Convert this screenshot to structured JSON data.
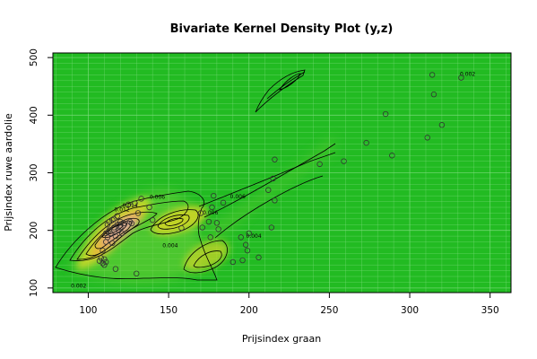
{
  "chart_data": {
    "type": "scatter",
    "title": "Bivariate Kernel Density Plot (y,z)",
    "xlabel": "Prijsindex graan",
    "ylabel": "Prijsindex ruwe aardolie",
    "xlim": [
      78,
      363
    ],
    "ylim": [
      92,
      508
    ],
    "x_ticks": [
      100,
      150,
      200,
      250,
      300,
      350
    ],
    "y_ticks": [
      100,
      200,
      300,
      400,
      500
    ],
    "grid": true,
    "colors": {
      "background": "#22bb22",
      "grid": "#7fdc7f",
      "points": "#333333",
      "contour": "#000000",
      "density_low": "#22bb22",
      "density_mid": "#e6cf1f",
      "density_high": "#d9a88f"
    },
    "contour_labels": [
      {
        "text": "0.002",
        "x": 94,
        "y": 104
      },
      {
        "text": "0.004",
        "x": 151,
        "y": 174
      },
      {
        "text": "0.004",
        "x": 203,
        "y": 190
      },
      {
        "text": "0.006",
        "x": 176,
        "y": 231
      },
      {
        "text": "0.006",
        "x": 193,
        "y": 259
      },
      {
        "text": "0.006",
        "x": 143,
        "y": 258
      },
      {
        "text": "0.014",
        "x": 126,
        "y": 243
      },
      {
        "text": "0.012",
        "x": 121,
        "y": 236
      },
      {
        "text": "0.002",
        "x": 336,
        "y": 471
      }
    ],
    "points": [
      {
        "x": 107,
        "y": 147
      },
      {
        "x": 108,
        "y": 152
      },
      {
        "x": 109,
        "y": 165
      },
      {
        "x": 109,
        "y": 143
      },
      {
        "x": 110,
        "y": 140
      },
      {
        "x": 110,
        "y": 150
      },
      {
        "x": 111,
        "y": 145
      },
      {
        "x": 111,
        "y": 180
      },
      {
        "x": 111,
        "y": 195
      },
      {
        "x": 112,
        "y": 188
      },
      {
        "x": 112,
        "y": 210
      },
      {
        "x": 113,
        "y": 200
      },
      {
        "x": 113,
        "y": 215
      },
      {
        "x": 114,
        "y": 195
      },
      {
        "x": 115,
        "y": 218
      },
      {
        "x": 115,
        "y": 178
      },
      {
        "x": 116,
        "y": 205
      },
      {
        "x": 116,
        "y": 220
      },
      {
        "x": 117,
        "y": 190
      },
      {
        "x": 117,
        "y": 133
      },
      {
        "x": 118,
        "y": 210
      },
      {
        "x": 118,
        "y": 225
      },
      {
        "x": 119,
        "y": 200
      },
      {
        "x": 120,
        "y": 215
      },
      {
        "x": 120,
        "y": 205
      },
      {
        "x": 121,
        "y": 195
      },
      {
        "x": 122,
        "y": 212
      },
      {
        "x": 125,
        "y": 245
      },
      {
        "x": 126,
        "y": 215
      },
      {
        "x": 127,
        "y": 212
      },
      {
        "x": 129,
        "y": 247
      },
      {
        "x": 130,
        "y": 125
      },
      {
        "x": 131,
        "y": 230
      },
      {
        "x": 133,
        "y": 255
      },
      {
        "x": 138,
        "y": 240
      },
      {
        "x": 140,
        "y": 218
      },
      {
        "x": 158,
        "y": 204
      },
      {
        "x": 170,
        "y": 230
      },
      {
        "x": 171,
        "y": 205
      },
      {
        "x": 175,
        "y": 215
      },
      {
        "x": 176,
        "y": 188
      },
      {
        "x": 177,
        "y": 240
      },
      {
        "x": 178,
        "y": 260
      },
      {
        "x": 180,
        "y": 213
      },
      {
        "x": 181,
        "y": 202
      },
      {
        "x": 184,
        "y": 248
      },
      {
        "x": 190,
        "y": 145
      },
      {
        "x": 195,
        "y": 188
      },
      {
        "x": 196,
        "y": 148
      },
      {
        "x": 198,
        "y": 175
      },
      {
        "x": 199,
        "y": 165
      },
      {
        "x": 200,
        "y": 195
      },
      {
        "x": 206,
        "y": 153
      },
      {
        "x": 212,
        "y": 270
      },
      {
        "x": 214,
        "y": 205
      },
      {
        "x": 215,
        "y": 290
      },
      {
        "x": 216,
        "y": 323
      },
      {
        "x": 216,
        "y": 252
      },
      {
        "x": 244,
        "y": 315
      },
      {
        "x": 259,
        "y": 320
      },
      {
        "x": 273,
        "y": 352
      },
      {
        "x": 285,
        "y": 402
      },
      {
        "x": 289,
        "y": 330
      },
      {
        "x": 311,
        "y": 361
      },
      {
        "x": 314,
        "y": 470
      },
      {
        "x": 315,
        "y": 436
      },
      {
        "x": 320,
        "y": 383
      },
      {
        "x": 332,
        "y": 465
      }
    ]
  }
}
